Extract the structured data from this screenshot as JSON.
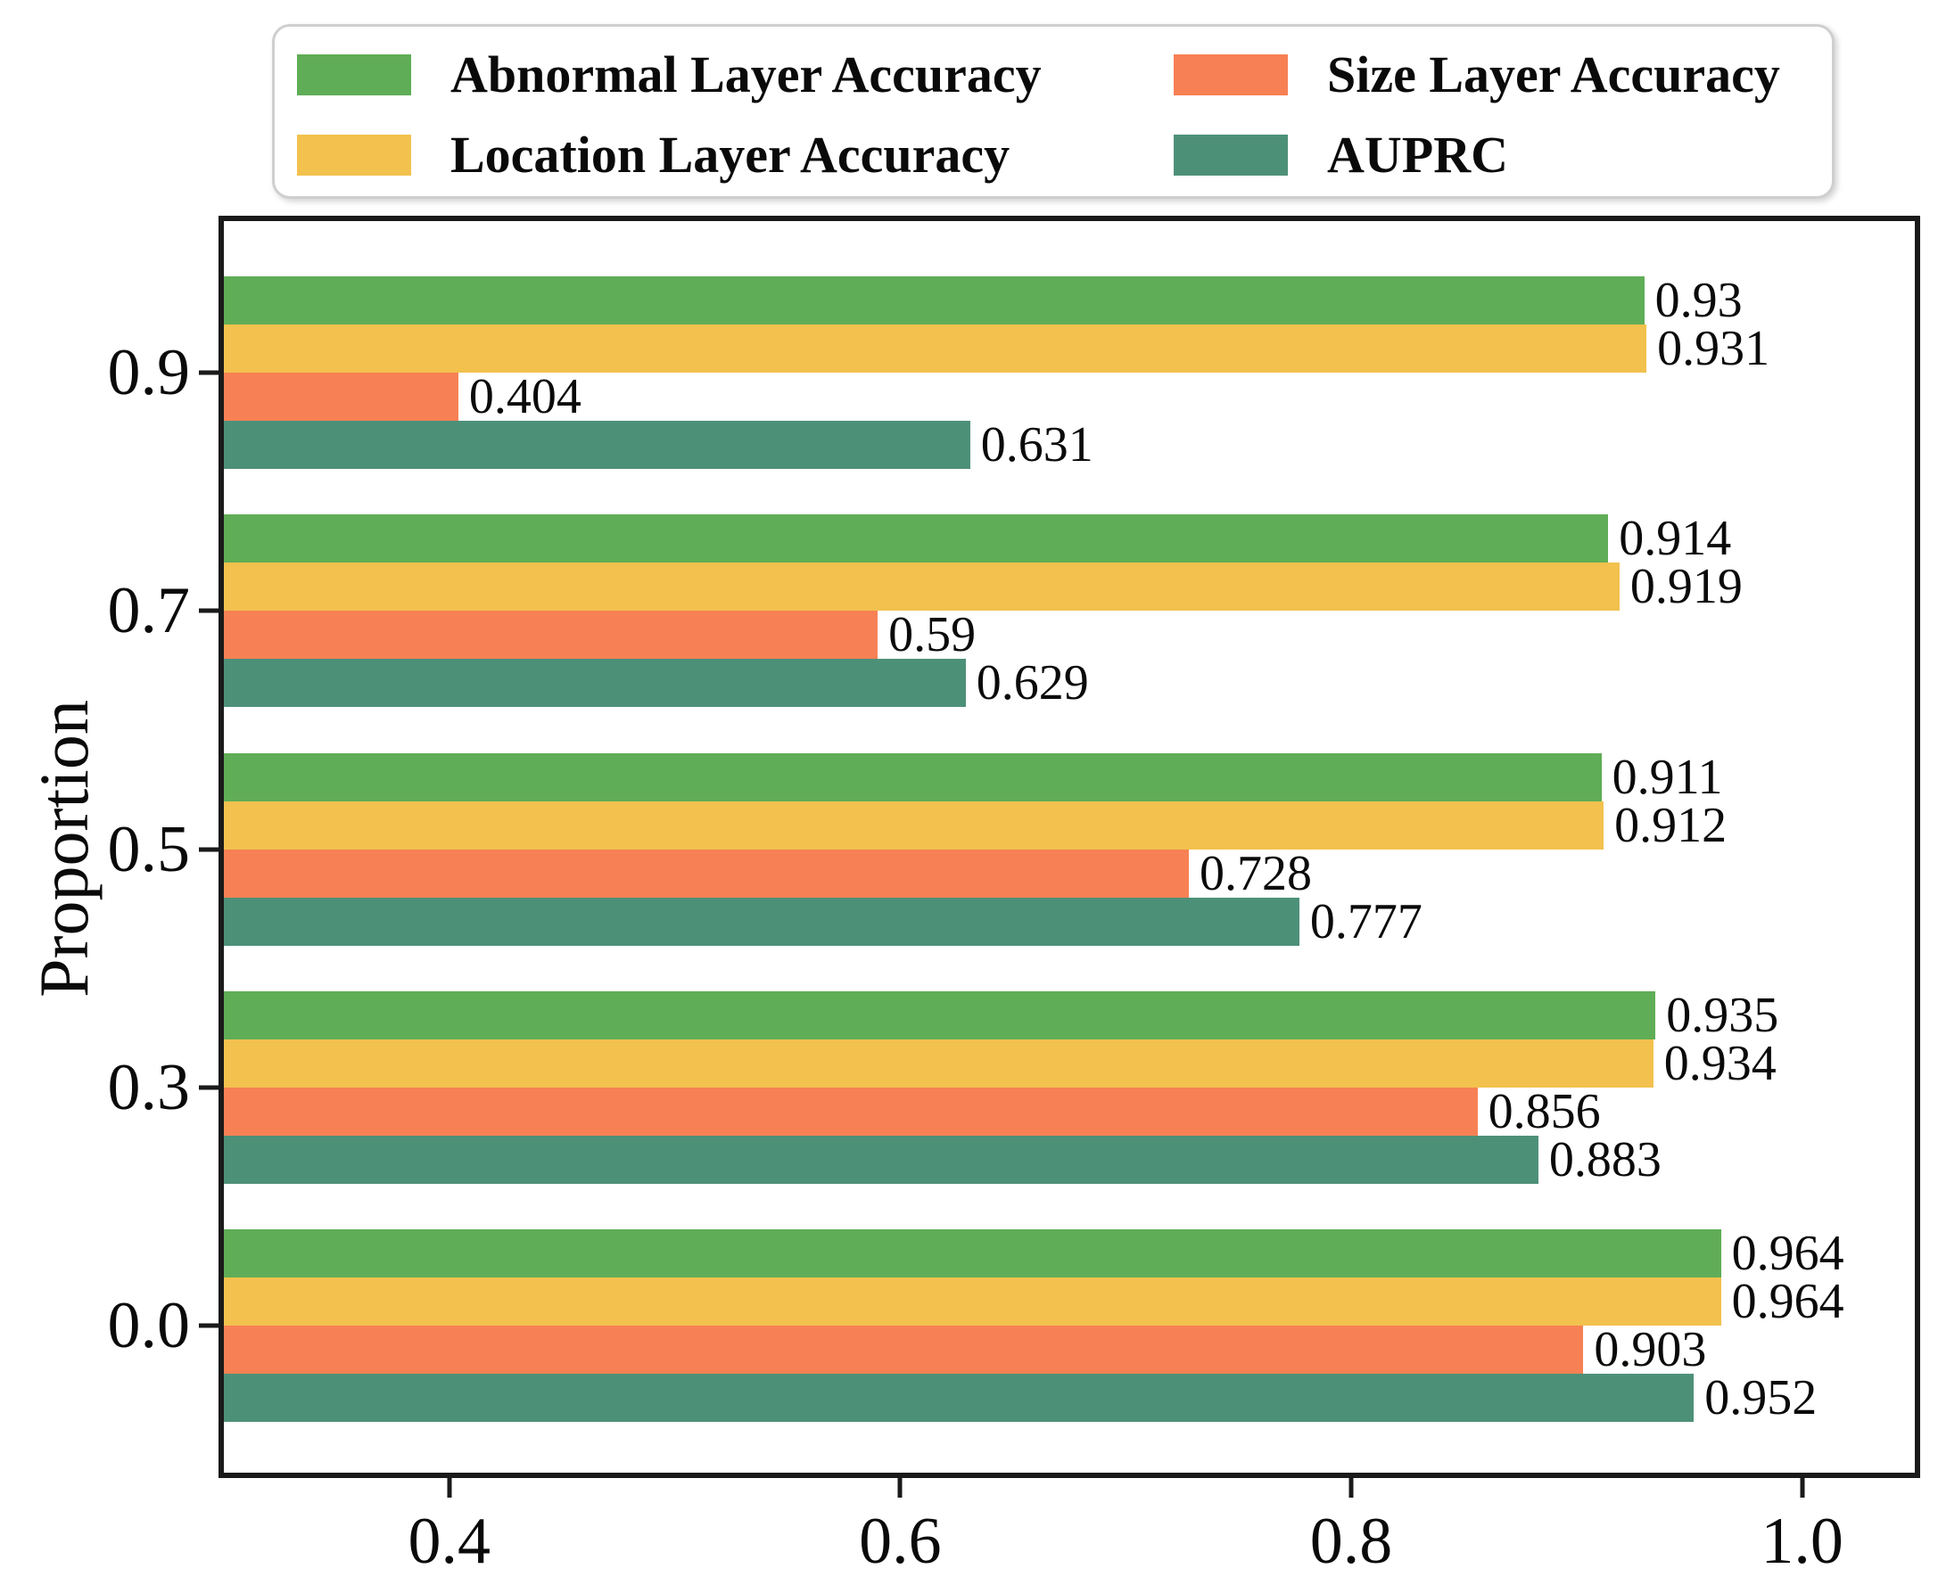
{
  "figure": {
    "ylabel": "Proportion"
  },
  "legend": {
    "items": [
      {
        "label": "Abnormal Layer Accuracy"
      },
      {
        "label": "Location Layer Accuracy"
      },
      {
        "label": "Size Layer Accuracy"
      },
      {
        "label": "AUPRC"
      }
    ]
  },
  "chart_data": {
    "type": "bar",
    "orientation": "horizontal",
    "title": "",
    "xlabel": "",
    "ylabel": "Proportion",
    "grid": false,
    "legend_position": "top",
    "categories": [
      "0.9",
      "0.7",
      "0.5",
      "0.3",
      "0.0"
    ],
    "series": [
      {
        "name": "Abnormal Layer Accuracy",
        "color": "#5FAD56",
        "values": [
          0.93,
          0.914,
          0.911,
          0.935,
          0.964
        ],
        "labels": [
          "0.93",
          "0.914",
          "0.911",
          "0.935",
          "0.964"
        ]
      },
      {
        "name": "Location Layer Accuracy",
        "color": "#F2C14E",
        "values": [
          0.931,
          0.919,
          0.912,
          0.934,
          0.964
        ],
        "labels": [
          "0.931",
          "0.919",
          "0.912",
          "0.934",
          "0.964"
        ]
      },
      {
        "name": "Size Layer Accuracy",
        "color": "#F78154",
        "values": [
          0.404,
          0.59,
          0.728,
          0.856,
          0.903
        ],
        "labels": [
          "0.404",
          "0.59",
          "0.728",
          "0.856",
          "0.903"
        ]
      },
      {
        "name": "AUPRC",
        "color": "#4D9078",
        "values": [
          0.631,
          0.629,
          0.777,
          0.883,
          0.952
        ],
        "labels": [
          "0.631",
          "0.629",
          "0.777",
          "0.883",
          "0.952"
        ]
      }
    ],
    "x_ticks": [
      "0.4",
      "0.6",
      "0.8",
      "1.0"
    ],
    "x_tick_values": [
      0.4,
      0.6,
      0.8,
      1.0
    ],
    "xlim": [
      0.3,
      1.05
    ]
  }
}
